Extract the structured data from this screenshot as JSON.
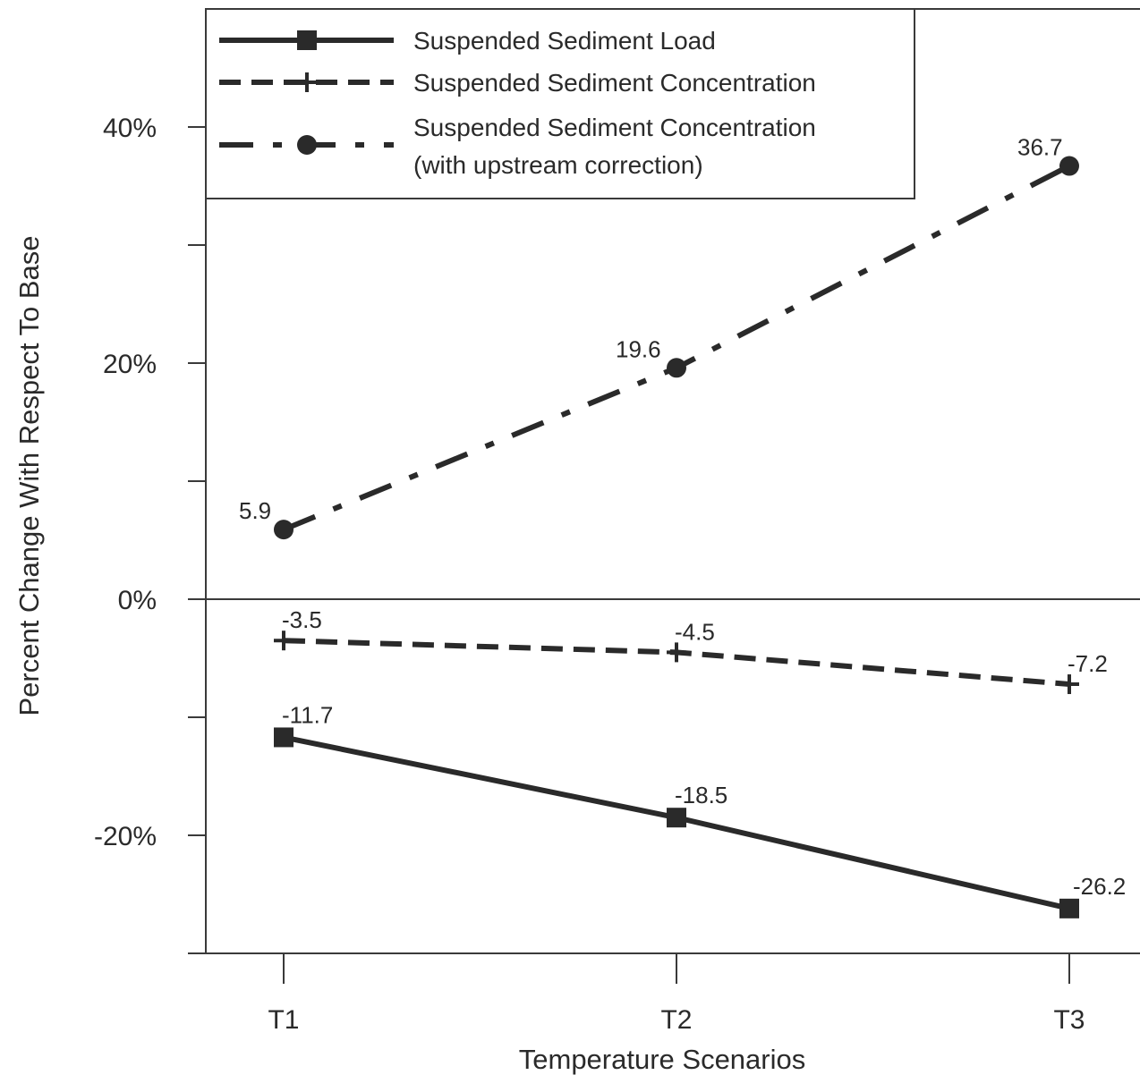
{
  "chart_data": {
    "type": "line",
    "title": "",
    "xlabel": "Temperature Scenarios",
    "ylabel": "Percent Change With Respect To Base",
    "categories": [
      "T1",
      "T2",
      "T3"
    ],
    "ylim": [
      -30,
      50
    ],
    "yticks": [
      {
        "value": -20,
        "label": "-20%"
      },
      {
        "value": 0,
        "label": "0%"
      },
      {
        "value": 20,
        "label": "20%"
      },
      {
        "value": 40,
        "label": "40%"
      }
    ],
    "yminor": [
      -10,
      10,
      30
    ],
    "grid": false,
    "zero_line": true,
    "legend_position": "top-left",
    "series": [
      {
        "name": "Suspended Sediment Load",
        "values": [
          -11.7,
          -18.5,
          -26.2
        ],
        "labels": [
          "-11.7",
          "-18.5",
          "-26.2"
        ],
        "marker": "square",
        "line_style": "solid"
      },
      {
        "name": "Suspended Sediment Concentration",
        "values": [
          -3.5,
          -4.5,
          -7.2
        ],
        "labels": [
          "-3.5",
          "-4.5",
          "-7.2"
        ],
        "marker": "plus",
        "line_style": "dashed"
      },
      {
        "name_lines": [
          "Suspended Sediment Concentration",
          "(with upstream correction)"
        ],
        "values": [
          5.9,
          19.6,
          36.7
        ],
        "labels": [
          "5.9",
          "19.6",
          "36.7"
        ],
        "marker": "circle",
        "line_style": "dash-dot"
      }
    ],
    "colors": {
      "line": "#2a2a2a",
      "axis": "#3a3a3a",
      "background": "#ffffff"
    }
  }
}
